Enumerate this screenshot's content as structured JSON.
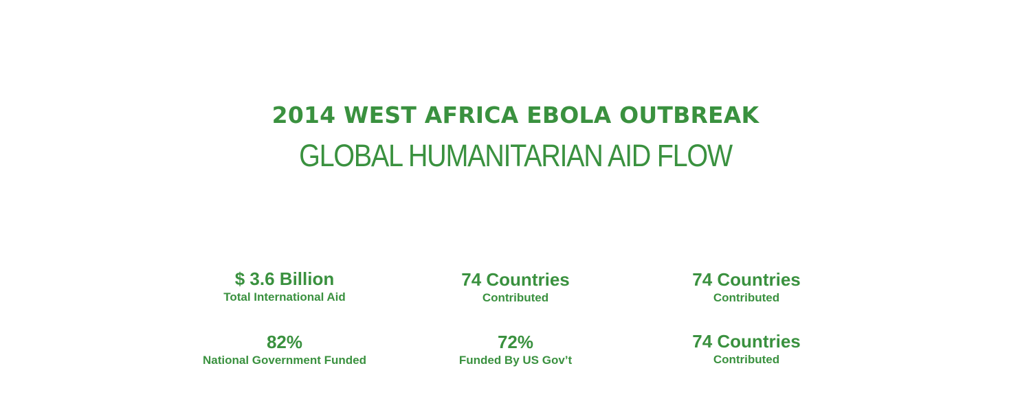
{
  "theme": {
    "accent_color": "#3a913f"
  },
  "header": {
    "title": "2014 WEST AFRICA EBOLA OUTBREAK",
    "subtitle": "GLOBAL HUMANITARIAN AID FLOW"
  },
  "stats": [
    {
      "value": "$ 3.6 Billion",
      "label": "Total International Aid"
    },
    {
      "value": "74 Countries",
      "label": "Contributed"
    },
    {
      "value": "74 Countries",
      "label": "Contributed"
    },
    {
      "value": "82%",
      "label": "National Government Funded"
    },
    {
      "value": "72%",
      "label": "Funded By US Gov’t"
    },
    {
      "value": "74 Countries",
      "label": "Contributed"
    }
  ]
}
